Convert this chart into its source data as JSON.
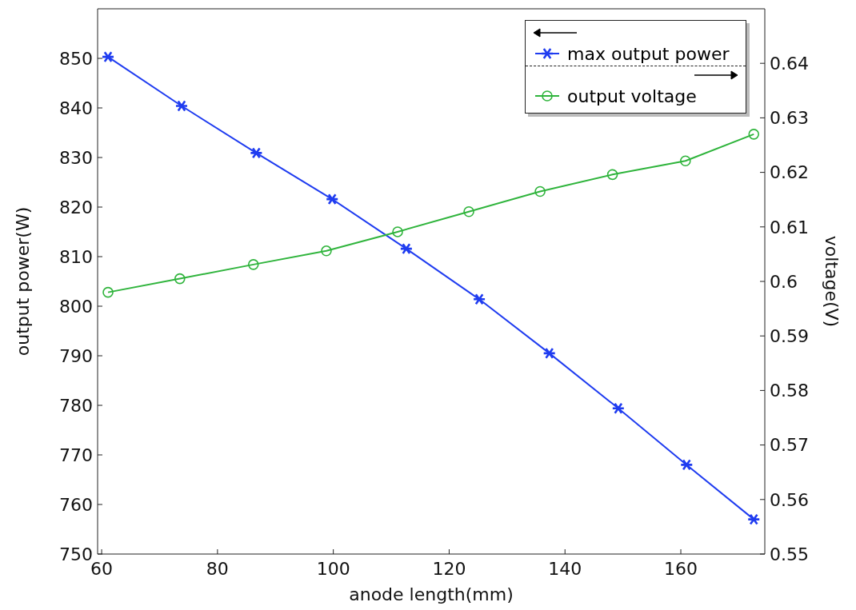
{
  "chart_data": {
    "type": "line",
    "xlabel": "anode length(mm)",
    "ylabel": "output power(W)",
    "y2label": "voltage(V)",
    "xlim": [
      59.3,
      174.5
    ],
    "xticks": [
      60,
      80,
      100,
      120,
      140,
      160
    ],
    "ylim": [
      750,
      860
    ],
    "yticks": [
      750,
      760,
      770,
      780,
      790,
      800,
      810,
      820,
      830,
      840,
      850
    ],
    "y2lim": [
      0.55,
      0.65
    ],
    "y2ticks": [
      0.55,
      0.56,
      0.57,
      0.58,
      0.59,
      0.6,
      0.61,
      0.62,
      0.63,
      0.64
    ],
    "legend": "top right",
    "grid": false,
    "line_style": "solid",
    "series": [
      {
        "name": "max output power",
        "color": "#1f3cf0",
        "marker": "cross",
        "x": [
          61.1,
          73.8,
          86.7,
          99.8,
          112.6,
          125.2,
          137.3,
          149.2,
          161.0,
          172.6
        ],
        "values": [
          850.3,
          840.4,
          830.9,
          821.6,
          811.6,
          801.4,
          790.5,
          779.4,
          768.0,
          757.0
        ]
      },
      {
        "name": "output voltage",
        "color": "#2fb43c",
        "marker": "circle",
        "axis": "y2",
        "x": [
          61.1,
          73.5,
          86.2,
          98.8,
          111.1,
          123.4,
          135.7,
          148.2,
          160.8,
          172.6
        ],
        "values": [
          0.598,
          0.6005,
          0.6031,
          0.6056,
          0.6091,
          0.6128,
          0.6165,
          0.6196,
          0.6221,
          0.627
        ]
      }
    ]
  }
}
